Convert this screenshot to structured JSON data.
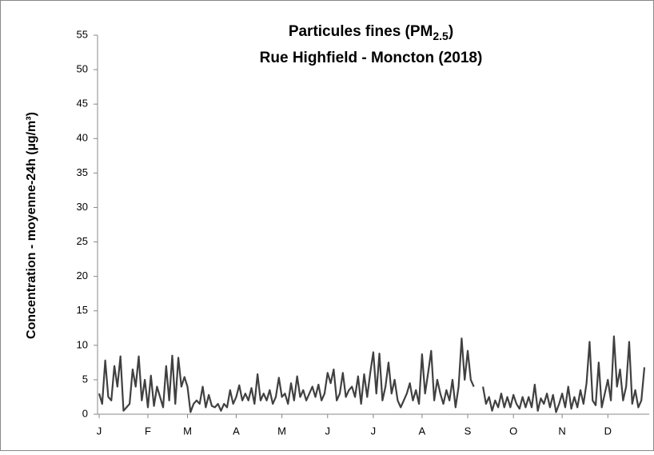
{
  "chart_data": {
    "type": "line",
    "title": {
      "text": "Particules fines (PM",
      "subscript": "2.5",
      "suffix": ")"
    },
    "subtitle": "Rue Highfield - Moncton (2018)",
    "y_label": "Concentration - moyenne-24h (µg/m³)",
    "categories": [
      "J",
      null,
      null,
      null,
      null,
      null,
      null,
      null,
      null,
      null,
      null,
      null,
      null,
      null,
      null,
      null,
      "F",
      null,
      null,
      null,
      null,
      null,
      null,
      null,
      null,
      null,
      null,
      null,
      null,
      "M",
      null,
      null,
      null,
      null,
      null,
      null,
      null,
      null,
      null,
      null,
      null,
      null,
      null,
      null,
      null,
      "A",
      null,
      null,
      null,
      null,
      null,
      null,
      null,
      null,
      null,
      null,
      null,
      null,
      null,
      null,
      "M",
      null,
      null,
      null,
      null,
      null,
      null,
      null,
      null,
      null,
      null,
      null,
      null,
      null,
      null,
      "J",
      null,
      null,
      null,
      null,
      null,
      null,
      null,
      null,
      null,
      null,
      null,
      null,
      null,
      null,
      "J",
      null,
      null,
      null,
      null,
      null,
      null,
      null,
      null,
      null,
      null,
      null,
      null,
      null,
      null,
      null,
      "A",
      null,
      null,
      null,
      null,
      null,
      null,
      null,
      null,
      null,
      null,
      null,
      null,
      null,
      null,
      "S",
      null,
      null,
      null,
      null,
      null,
      null,
      null,
      null,
      null,
      null,
      null,
      null,
      null,
      null,
      "O",
      null,
      null,
      null,
      null,
      null,
      null,
      null,
      null,
      null,
      null,
      null,
      null,
      null,
      null,
      null,
      "N",
      null,
      null,
      null,
      null,
      null,
      null,
      null,
      null,
      null,
      null,
      null,
      null,
      null,
      null,
      "D",
      null,
      null,
      null,
      null,
      null,
      null,
      null,
      null,
      null,
      null,
      null,
      null
    ],
    "series": [
      {
        "color": "#404040",
        "values": [
          3,
          1.5,
          7.8,
          2.5,
          2,
          7,
          4,
          8.4,
          0.5,
          1,
          1.5,
          6.5,
          4,
          8.4,
          2,
          5,
          1,
          5.6,
          1.2,
          4,
          2.5,
          1,
          7,
          2,
          8.5,
          1.5,
          8.2,
          4,
          5.4,
          4,
          0.3,
          1.5,
          2,
          1.5,
          4,
          1,
          2.8,
          1.2,
          1,
          1.5,
          0.5,
          1.5,
          1,
          3.5,
          1.5,
          2.5,
          4.2,
          2,
          3,
          2,
          3.8,
          1.5,
          5.8,
          2,
          3,
          2,
          3.5,
          1.5,
          2.5,
          5.3,
          2.5,
          3,
          1.5,
          4.5,
          2,
          5.5,
          2.5,
          3.5,
          2,
          3,
          4,
          2.5,
          4.3,
          2,
          3,
          6,
          4.5,
          6.5,
          2,
          3,
          6,
          2.5,
          3.5,
          4,
          2.5,
          5.5,
          1.5,
          5.8,
          2.5,
          6,
          9,
          3,
          8.8,
          2,
          4,
          7.5,
          3,
          5,
          2,
          1,
          2,
          3,
          4.5,
          2,
          3.5,
          1.5,
          8.7,
          3,
          6,
          9.2,
          2,
          5,
          3,
          1.5,
          3.5,
          2,
          5,
          1,
          4,
          11,
          5,
          9.2,
          5,
          4,
          null,
          null,
          4,
          1.5,
          2.5,
          0.5,
          2,
          1,
          3,
          1,
          2.5,
          1,
          2.8,
          1.5,
          0.8,
          2.5,
          1,
          2.5,
          1,
          4.3,
          0.5,
          2.3,
          1.5,
          3,
          1,
          2.8,
          0.3,
          1.5,
          3,
          1,
          4,
          0.8,
          2.5,
          1,
          3.5,
          1.5,
          4.5,
          10.5,
          2,
          1.3,
          7.5,
          1,
          3,
          5,
          2,
          11.3,
          4,
          6.5,
          2,
          4,
          10.5,
          1.5,
          3.5,
          1,
          2,
          6.8
        ]
      }
    ],
    "ylim": [
      0,
      55
    ],
    "yticks": [
      0,
      5,
      10,
      15,
      20,
      25,
      30,
      35,
      40,
      45,
      50,
      55
    ]
  }
}
